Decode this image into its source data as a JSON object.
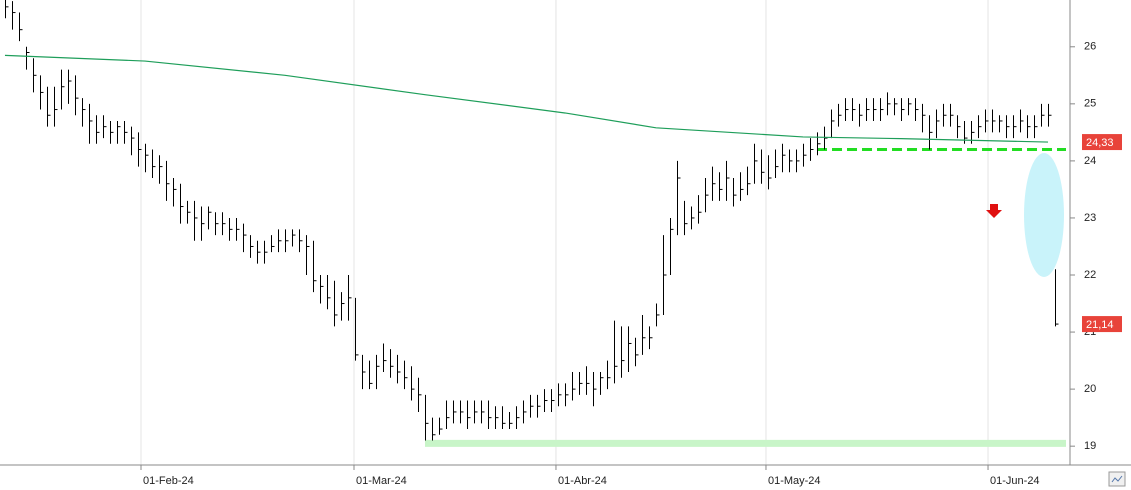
{
  "chart_data": {
    "type": "ohlc",
    "color": "#000000",
    "xlim": [
      -0.71,
      152.14
    ],
    "ylim": [
      18.67,
      26.82
    ],
    "xticks": [
      {
        "value": 19.43,
        "label": "01-Feb-24"
      },
      {
        "value": 49.86,
        "label": "01-Mar-24"
      },
      {
        "value": 78.71,
        "label": "01-Abr-24"
      },
      {
        "value": 108.71,
        "label": "01-May-24"
      },
      {
        "value": 140.43,
        "label": "01-Jun-24"
      }
    ],
    "yticks": [
      19,
      20,
      21,
      22,
      23,
      24,
      25,
      26
    ],
    "grid": true,
    "close": [
      26.7,
      26.6,
      26.3,
      25.9,
      25.5,
      25.2,
      24.8,
      24.9,
      25.3,
      25.4,
      25.1,
      24.9,
      24.7,
      24.5,
      24.6,
      24.5,
      24.6,
      24.5,
      24.4,
      24.2,
      24.1,
      23.9,
      23.9,
      23.6,
      23.5,
      23.2,
      23.1,
      23.0,
      22.9,
      23.1,
      22.9,
      22.9,
      22.8,
      22.8,
      22.7,
      22.5,
      22.4,
      22.4,
      22.5,
      22.6,
      22.6,
      22.7,
      22.6,
      22.5,
      21.9,
      21.8,
      21.6,
      21.3,
      21.5,
      21.6,
      20.6,
      20.3,
      20.1,
      20.4,
      20.5,
      20.4,
      20.3,
      20.2,
      20.0,
      19.9,
      19.4,
      19.2,
      19.3,
      19.5,
      19.6,
      19.6,
      19.5,
      19.6,
      19.6,
      19.5,
      19.5,
      19.4,
      19.4,
      19.5,
      19.6,
      19.7,
      19.7,
      19.8,
      19.8,
      19.9,
      19.9,
      20.0,
      20.1,
      20.1,
      20.0,
      20.2,
      20.2,
      20.4,
      20.5,
      20.8,
      20.6,
      20.9,
      20.9,
      21.3,
      22.0,
      22.8,
      23.7,
      22.9,
      23.0,
      23.1,
      23.4,
      23.6,
      23.5,
      23.7,
      23.4,
      23.5,
      23.6,
      24.0,
      23.8,
      23.7,
      23.9,
      24.1,
      24.0,
      24.0,
      24.1,
      24.2,
      24.3,
      24.4,
      24.7,
      24.8,
      24.9,
      24.9,
      24.8,
      24.9,
      24.9,
      24.9,
      25.0,
      25.0,
      24.9,
      25.0,
      24.9,
      24.8,
      24.5,
      24.7,
      24.8,
      24.8,
      24.6,
      24.4,
      24.5,
      24.6,
      24.7,
      24.7,
      24.7,
      24.6,
      24.6,
      24.7,
      24.6,
      24.6,
      24.8,
      24.8,
      21.14
    ],
    "high": [
      26.9,
      26.8,
      26.6,
      26.0,
      25.8,
      25.5,
      25.3,
      25.3,
      25.6,
      25.6,
      25.5,
      25.1,
      25.0,
      24.8,
      24.8,
      24.7,
      24.7,
      24.7,
      24.6,
      24.5,
      24.3,
      24.2,
      24.1,
      24.0,
      23.7,
      23.6,
      23.3,
      23.3,
      23.2,
      23.2,
      23.1,
      23.1,
      23.0,
      23.0,
      22.9,
      22.7,
      22.6,
      22.6,
      22.7,
      22.8,
      22.8,
      22.8,
      22.8,
      22.7,
      22.6,
      22.0,
      22.0,
      21.9,
      21.7,
      22.0,
      21.6,
      20.6,
      20.5,
      20.6,
      20.8,
      20.7,
      20.6,
      20.5,
      20.4,
      20.2,
      19.9,
      19.5,
      19.5,
      19.8,
      19.8,
      19.8,
      19.8,
      19.8,
      19.8,
      19.8,
      19.7,
      19.7,
      19.6,
      19.7,
      19.8,
      19.9,
      19.9,
      20.0,
      20.0,
      20.1,
      20.1,
      20.3,
      20.3,
      20.4,
      20.3,
      20.3,
      20.5,
      21.2,
      21.1,
      21.1,
      20.9,
      21.3,
      21.1,
      21.5,
      22.7,
      23.0,
      24.0,
      23.3,
      23.2,
      23.4,
      23.7,
      23.9,
      23.8,
      24.0,
      23.7,
      23.8,
      23.9,
      24.3,
      24.2,
      24.1,
      24.2,
      24.3,
      24.2,
      24.2,
      24.3,
      24.4,
      24.5,
      24.6,
      24.9,
      25.0,
      25.1,
      25.1,
      25.0,
      25.1,
      25.1,
      25.1,
      25.2,
      25.1,
      25.1,
      25.1,
      25.1,
      25.0,
      24.8,
      24.9,
      25.0,
      25.0,
      24.8,
      24.7,
      24.7,
      24.8,
      24.9,
      24.9,
      24.8,
      24.8,
      24.8,
      24.9,
      24.8,
      24.8,
      25.0,
      25.0,
      22.1
    ],
    "low": [
      26.5,
      26.3,
      26.1,
      25.6,
      25.2,
      24.9,
      24.6,
      24.6,
      24.9,
      25.0,
      24.8,
      24.6,
      24.3,
      24.3,
      24.4,
      24.3,
      24.3,
      24.3,
      24.1,
      23.9,
      23.8,
      23.7,
      23.6,
      23.3,
      23.2,
      22.9,
      22.9,
      22.6,
      22.6,
      22.8,
      22.7,
      22.7,
      22.6,
      22.6,
      22.4,
      22.3,
      22.2,
      22.2,
      22.4,
      22.4,
      22.4,
      22.5,
      22.4,
      22.0,
      21.7,
      21.5,
      21.4,
      21.1,
      21.2,
      21.2,
      20.5,
      20.0,
      20.0,
      20.0,
      20.3,
      20.2,
      20.1,
      20.0,
      19.8,
      19.6,
      19.1,
      19.1,
      19.2,
      19.3,
      19.4,
      19.4,
      19.3,
      19.4,
      19.4,
      19.3,
      19.3,
      19.3,
      19.3,
      19.3,
      19.4,
      19.5,
      19.5,
      19.6,
      19.6,
      19.7,
      19.7,
      19.8,
      19.9,
      19.9,
      19.7,
      19.9,
      20.0,
      20.1,
      20.2,
      20.3,
      20.4,
      20.6,
      20.7,
      21.1,
      21.3,
      22.0,
      22.7,
      22.7,
      22.8,
      22.9,
      23.1,
      23.3,
      23.3,
      23.3,
      23.2,
      23.3,
      23.4,
      23.6,
      23.6,
      23.5,
      23.7,
      23.8,
      23.8,
      23.8,
      23.9,
      24.0,
      24.1,
      24.2,
      24.4,
      24.6,
      24.7,
      24.7,
      24.6,
      24.7,
      24.7,
      24.7,
      24.8,
      24.8,
      24.7,
      24.8,
      24.7,
      24.5,
      24.2,
      24.4,
      24.6,
      24.6,
      24.4,
      24.3,
      24.3,
      24.4,
      24.5,
      24.5,
      24.5,
      24.4,
      24.4,
      24.5,
      24.4,
      24.4,
      24.6,
      24.6,
      21.1
    ],
    "ma": {
      "color": "#1e9e5a",
      "x": [
        0,
        20,
        40,
        60,
        80,
        93,
        114,
        128,
        149
      ],
      "values": [
        25.85,
        25.75,
        25.5,
        25.16,
        24.84,
        24.58,
        24.42,
        24.39,
        24.33
      ]
    },
    "hlines": [
      {
        "value": 24.2,
        "start": 116,
        "style": "dashed",
        "color": "#22dd22"
      },
      {
        "value": 19.05,
        "start": 60,
        "style": "band",
        "color": "#c8f5c8"
      }
    ],
    "price_labels": [
      {
        "value": 24.33,
        "label": "24,33",
        "color": "#e8433a"
      },
      {
        "value": 21.14,
        "label": "21,14",
        "color": "#e8433a"
      }
    ]
  }
}
